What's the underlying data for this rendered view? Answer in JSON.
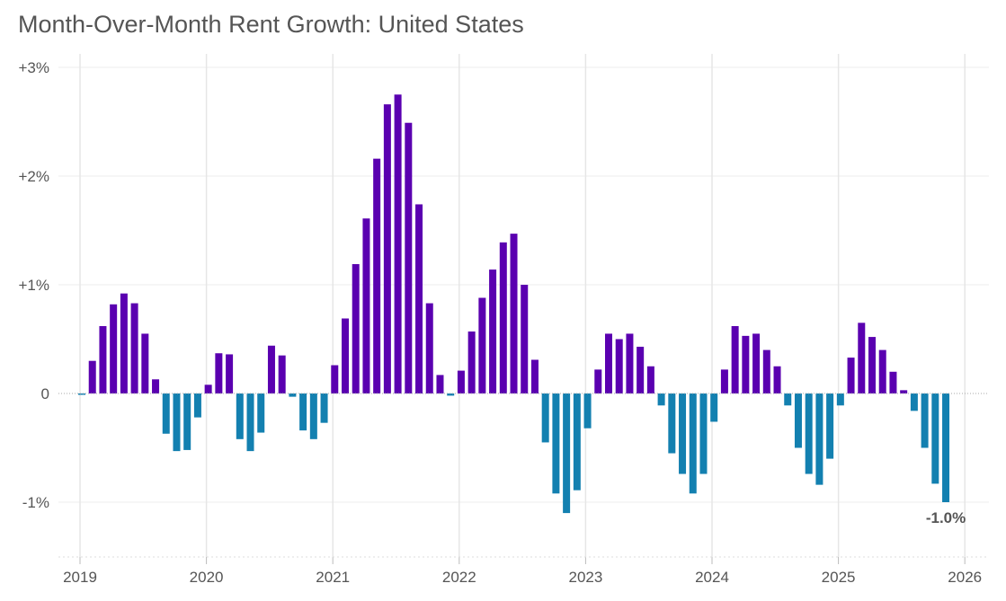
{
  "chart_data": {
    "type": "bar",
    "title": "Month-Over-Month Rent Growth: United States",
    "xlabel": "",
    "ylabel": "",
    "ylim": [
      -1.5,
      3.1
    ],
    "yticks": [
      3,
      2,
      1,
      0,
      -1
    ],
    "ytick_labels": [
      "+3%",
      "+2%",
      "+1%",
      "0",
      "-1%"
    ],
    "xticks": [
      "2019",
      "2020",
      "2021",
      "2022",
      "2023",
      "2024",
      "2025",
      "2026"
    ],
    "start_month": "2019-01",
    "grid": true,
    "colors": {
      "positive": "#5a00b0",
      "negative": "#1380b0"
    },
    "values": [
      -0.01,
      0.3,
      0.62,
      0.82,
      0.92,
      0.83,
      0.55,
      0.13,
      -0.37,
      -0.53,
      -0.52,
      -0.22,
      0.08,
      0.37,
      0.36,
      -0.42,
      -0.53,
      -0.36,
      0.44,
      0.35,
      -0.03,
      -0.34,
      -0.42,
      -0.27,
      0.26,
      0.69,
      1.19,
      1.61,
      2.16,
      2.66,
      2.75,
      2.49,
      1.74,
      0.83,
      0.17,
      -0.02,
      0.21,
      0.57,
      0.88,
      1.14,
      1.39,
      1.47,
      1.0,
      0.31,
      -0.45,
      -0.92,
      -1.1,
      -0.89,
      -0.32,
      0.22,
      0.55,
      0.5,
      0.55,
      0.43,
      0.25,
      -0.11,
      -0.55,
      -0.74,
      -0.92,
      -0.74,
      -0.26,
      0.22,
      0.62,
      0.53,
      0.55,
      0.4,
      0.25,
      -0.11,
      -0.5,
      -0.74,
      -0.84,
      -0.6,
      -0.11,
      0.33,
      0.65,
      0.52,
      0.4,
      0.2,
      0.03,
      -0.16,
      -0.5,
      -0.83,
      -1.0
    ],
    "annotation": {
      "label": "-1.0%",
      "month": "2025-11"
    }
  }
}
